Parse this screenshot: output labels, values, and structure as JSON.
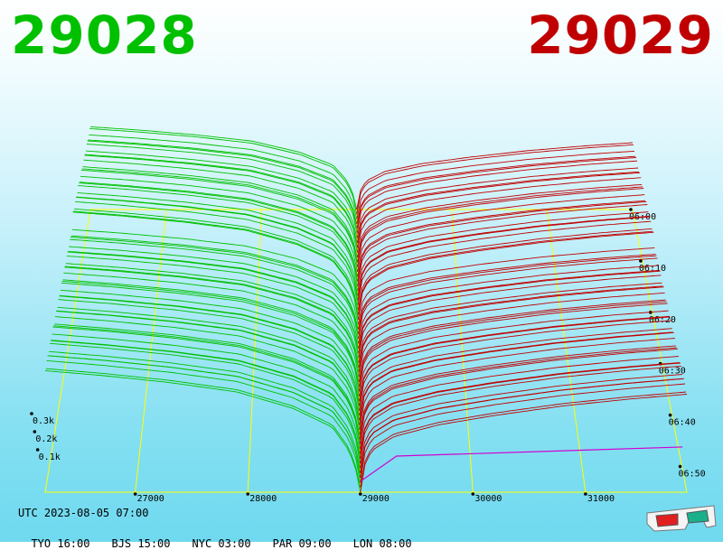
{
  "header": {
    "bid_price": "29028",
    "ask_price": "29029"
  },
  "footer": {
    "utc": "UTC 2023-08-05 07:00",
    "zones": [
      "TYO 16:00",
      "BJS 15:00",
      "NYC 03:00",
      "PAR 09:00",
      "LON 08:00"
    ]
  },
  "colors": {
    "bid": "#00c000",
    "ask": "#c00000",
    "grid": "#ffff00",
    "net": "#d000d0"
  },
  "icons": [
    "3d-glasses-icon"
  ],
  "chart_data": {
    "type": "3d-depth-surface",
    "price_ticks": [
      "27000",
      "28000",
      "29000",
      "30000",
      "31000"
    ],
    "price_range": [
      26200,
      31900
    ],
    "mid_price": 29000,
    "time_ticks": [
      "06:00",
      "06:10",
      "06:20",
      "06:30",
      "06:40",
      "06:50"
    ],
    "volume_ticks": [
      "0.1k",
      "0.2k",
      "0.3k"
    ],
    "series": [
      {
        "side": "bid",
        "points": [
          [
            26200,
            0.52
          ],
          [
            26700,
            0.5
          ],
          [
            27300,
            0.47
          ],
          [
            27900,
            0.43
          ],
          [
            28400,
            0.36
          ],
          [
            28750,
            0.28
          ],
          [
            28900,
            0.18
          ],
          [
            28980,
            0.07
          ],
          [
            29000,
            0.0
          ]
        ]
      },
      {
        "side": "ask",
        "points": [
          [
            29000,
            0.0
          ],
          [
            29020,
            0.1
          ],
          [
            29100,
            0.18
          ],
          [
            29300,
            0.24
          ],
          [
            29700,
            0.29
          ],
          [
            30200,
            0.33
          ],
          [
            30800,
            0.37
          ],
          [
            31400,
            0.4
          ],
          [
            31900,
            0.42
          ]
        ]
      }
    ],
    "gap": {
      "time_index": 23,
      "ratio": 0.45
    }
  }
}
